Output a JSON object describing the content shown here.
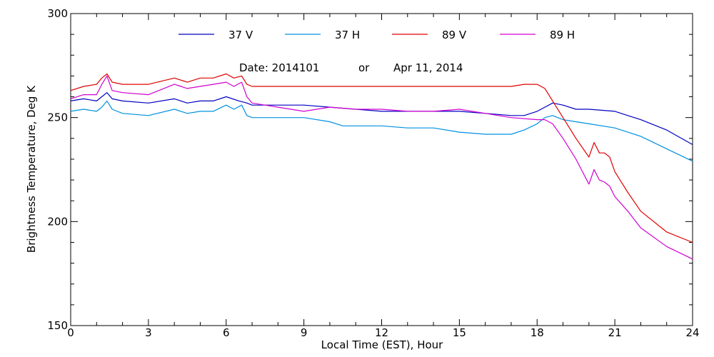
{
  "chart_data": {
    "type": "line",
    "title": "",
    "subtitle": {
      "date_label": "Date: 2014101",
      "or_label": "or",
      "date_text": "Apr 11, 2014"
    },
    "xlabel": "Local Time (EST), Hour",
    "ylabel": "Brightness Temperature, Deg K",
    "xlim": [
      0,
      24
    ],
    "ylim": [
      150,
      300
    ],
    "xticks": [
      0,
      3,
      6,
      9,
      12,
      15,
      18,
      21,
      24
    ],
    "yticks": [
      150,
      200,
      250,
      300
    ],
    "grid": false,
    "legend_position": "top",
    "series": [
      {
        "name": "37 V",
        "color": "#0000c0",
        "x": [
          0,
          0.5,
          1,
          1.2,
          1.4,
          1.6,
          2,
          3,
          4,
          4.5,
          5,
          5.5,
          6,
          6.5,
          6.8,
          7,
          8,
          9,
          10,
          11,
          12,
          13,
          14,
          15,
          16,
          17,
          17.5,
          18,
          18.3,
          18.6,
          19,
          19.5,
          20,
          21,
          22,
          23,
          24
        ],
        "y": [
          258,
          259,
          258,
          260,
          262,
          259,
          258,
          257,
          259,
          257,
          258,
          258,
          260,
          258,
          257,
          256,
          256,
          256,
          255,
          254,
          253,
          253,
          253,
          253,
          252,
          251,
          251,
          253,
          255,
          257,
          256,
          254,
          254,
          253,
          249,
          244,
          237
        ]
      },
      {
        "name": "37 H",
        "color": "#0090e0",
        "x": [
          0,
          0.5,
          1,
          1.2,
          1.4,
          1.6,
          2,
          3,
          4,
          4.5,
          5,
          5.5,
          6,
          6.3,
          6.6,
          6.8,
          7,
          8,
          9,
          10,
          10.5,
          11,
          12,
          13,
          14,
          15,
          16,
          17,
          17.5,
          18,
          18.3,
          18.6,
          19,
          19.5,
          20,
          21,
          22,
          23,
          24
        ],
        "y": [
          253,
          254,
          253,
          255,
          258,
          254,
          252,
          251,
          254,
          252,
          253,
          253,
          256,
          254,
          256,
          251,
          250,
          250,
          250,
          248,
          246,
          246,
          246,
          245,
          245,
          243,
          242,
          242,
          244,
          247,
          250,
          251,
          249,
          248,
          247,
          245,
          241,
          235,
          229
        ]
      },
      {
        "name": "89 V",
        "color": "#e00000",
        "x": [
          0,
          0.5,
          1,
          1.2,
          1.4,
          1.6,
          2,
          3,
          4,
          4.5,
          5,
          5.5,
          6,
          6.3,
          6.6,
          6.8,
          7,
          8,
          9,
          10,
          11,
          12,
          13,
          14,
          15,
          16,
          17,
          17.5,
          18,
          18.3,
          18.6,
          19,
          19.5,
          20,
          20.2,
          20.4,
          20.6,
          20.8,
          21,
          21.5,
          22,
          23,
          24
        ],
        "y": [
          263,
          265,
          266,
          269,
          271,
          267,
          266,
          266,
          269,
          267,
          269,
          269,
          271,
          269,
          270,
          266,
          265,
          265,
          265,
          265,
          265,
          265,
          265,
          265,
          265,
          265,
          265,
          266,
          266,
          264,
          258,
          250,
          240,
          231,
          238,
          233,
          233,
          231,
          224,
          214,
          205,
          195,
          190
        ]
      },
      {
        "name": "89 H",
        "color": "#d000d0",
        "x": [
          0,
          0.5,
          1,
          1.2,
          1.4,
          1.6,
          2,
          3,
          4,
          4.5,
          5,
          5.5,
          6,
          6.3,
          6.6,
          6.8,
          7,
          8,
          9,
          10,
          11,
          12,
          13,
          14,
          15,
          16,
          17,
          18,
          18.3,
          18.6,
          19,
          19.5,
          20,
          20.2,
          20.4,
          20.6,
          20.8,
          21,
          21.5,
          22,
          23,
          24
        ],
        "y": [
          259,
          261,
          261,
          266,
          270,
          263,
          262,
          261,
          266,
          264,
          265,
          266,
          267,
          265,
          267,
          260,
          257,
          255,
          253,
          255,
          254,
          254,
          253,
          253,
          254,
          252,
          250,
          249,
          249,
          247,
          240,
          230,
          218,
          225,
          220,
          219,
          217,
          212,
          205,
          197,
          188,
          182
        ]
      }
    ]
  }
}
